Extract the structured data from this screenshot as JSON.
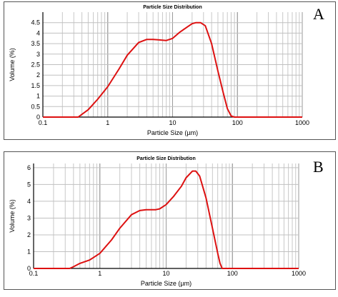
{
  "chart_data": [
    {
      "type": "line",
      "panel_label": "A",
      "title": "Particle Size Distribution",
      "xlabel": "Particle Size (µm)",
      "ylabel": "Volume (%)",
      "x_scale": "log",
      "xlim": [
        0.1,
        1000
      ],
      "ylim": [
        0,
        5
      ],
      "x_ticks": [
        0.1,
        1,
        10,
        100,
        1000
      ],
      "x_tick_labels": [
        "0.1",
        "1",
        "10",
        "100",
        "1000"
      ],
      "y_ticks": [
        0,
        0.5,
        1,
        1.5,
        2,
        2.5,
        3,
        3.5,
        4,
        4.5
      ],
      "y_tick_labels": [
        "0",
        "0.5",
        "1",
        "1.5",
        "2",
        "2.5",
        "3",
        "3.5",
        "4",
        "4.5"
      ],
      "grid": true,
      "line_color": "#dd1111",
      "series": [
        {
          "x": [
            0.1,
            0.35,
            0.5,
            0.7,
            1.0,
            1.5,
            2.0,
            3.0,
            4.0,
            5.0,
            6.0,
            8.0,
            10.0,
            13.0,
            17.0,
            20.0,
            23.0,
            27.0,
            32.0,
            40.0,
            50.0,
            60.0,
            70.0,
            80.0,
            90.0,
            100.0,
            1000.0
          ],
          "y": [
            0.0,
            0.0,
            0.35,
            0.85,
            1.45,
            2.3,
            2.95,
            3.55,
            3.7,
            3.7,
            3.68,
            3.65,
            3.75,
            4.05,
            4.3,
            4.45,
            4.5,
            4.5,
            4.35,
            3.5,
            2.2,
            1.2,
            0.4,
            0.05,
            0.0,
            0.0,
            0.0
          ]
        }
      ]
    },
    {
      "type": "line",
      "panel_label": "B",
      "title": "Particle Size Distribution",
      "xlabel": "Particle Size (µm)",
      "ylabel": "Volume (%)",
      "x_scale": "log",
      "xlim": [
        0.1,
        1000
      ],
      "ylim": [
        0,
        6.25
      ],
      "x_ticks": [
        0.1,
        1,
        10,
        100,
        1000
      ],
      "x_tick_labels": [
        "0.1",
        "1",
        "10",
        "100",
        "1000"
      ],
      "y_ticks": [
        0,
        1,
        2,
        3,
        4,
        5,
        6
      ],
      "y_tick_labels": [
        "0",
        "1",
        "2",
        "3",
        "4",
        "5",
        "6"
      ],
      "grid": true,
      "line_color": "#dd1111",
      "series": [
        {
          "x": [
            0.1,
            0.35,
            0.4,
            0.5,
            0.7,
            1.0,
            1.5,
            2.0,
            3.0,
            4.0,
            5.0,
            6.0,
            7.0,
            8.0,
            10.0,
            13.0,
            17.0,
            20.0,
            25.0,
            28.0,
            32.0,
            40.0,
            50.0,
            60.0,
            65.0,
            70.0,
            100.0,
            1000.0
          ],
          "y": [
            0.0,
            0.0,
            0.1,
            0.3,
            0.5,
            0.9,
            1.7,
            2.4,
            3.2,
            3.45,
            3.5,
            3.5,
            3.5,
            3.55,
            3.8,
            4.3,
            4.9,
            5.4,
            5.8,
            5.8,
            5.5,
            4.2,
            2.4,
            0.9,
            0.3,
            0.0,
            0.0,
            0.0
          ]
        }
      ]
    }
  ]
}
